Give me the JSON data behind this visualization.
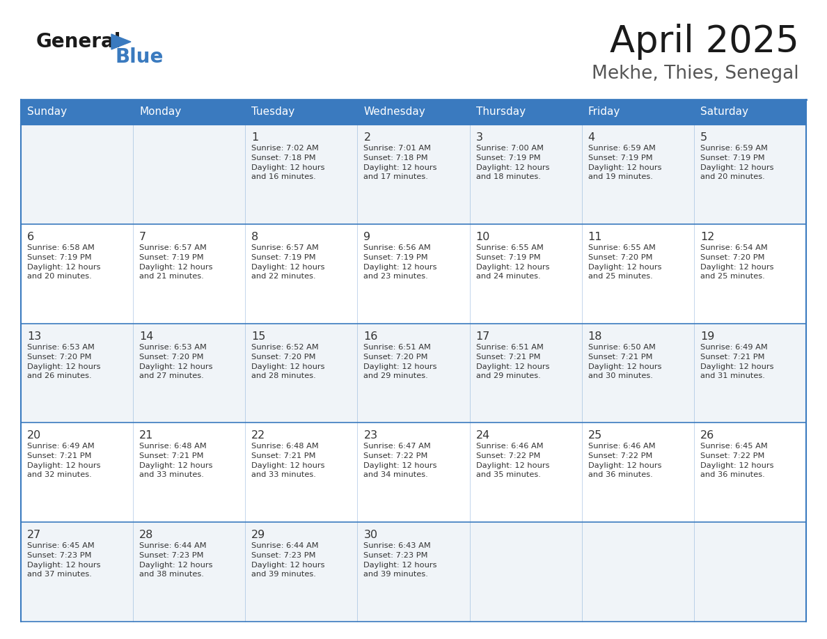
{
  "title": "April 2025",
  "subtitle": "Mekhe, Thies, Senegal",
  "days_of_week": [
    "Sunday",
    "Monday",
    "Tuesday",
    "Wednesday",
    "Thursday",
    "Friday",
    "Saturday"
  ],
  "header_bg": "#3a7abf",
  "header_text": "#ffffff",
  "cell_bg_odd": "#f0f4f8",
  "cell_bg_even": "#ffffff",
  "border_color": "#3a7abf",
  "text_color": "#333333",
  "logo_general_color": "#1a1a1a",
  "logo_blue_color": "#3a7abf",
  "calendar": [
    [
      {
        "day": "",
        "sunrise": "",
        "sunset": "",
        "daylight": ""
      },
      {
        "day": "",
        "sunrise": "",
        "sunset": "",
        "daylight": ""
      },
      {
        "day": "1",
        "sunrise": "Sunrise: 7:02 AM",
        "sunset": "Sunset: 7:18 PM",
        "daylight": "Daylight: 12 hours\nand 16 minutes."
      },
      {
        "day": "2",
        "sunrise": "Sunrise: 7:01 AM",
        "sunset": "Sunset: 7:18 PM",
        "daylight": "Daylight: 12 hours\nand 17 minutes."
      },
      {
        "day": "3",
        "sunrise": "Sunrise: 7:00 AM",
        "sunset": "Sunset: 7:19 PM",
        "daylight": "Daylight: 12 hours\nand 18 minutes."
      },
      {
        "day": "4",
        "sunrise": "Sunrise: 6:59 AM",
        "sunset": "Sunset: 7:19 PM",
        "daylight": "Daylight: 12 hours\nand 19 minutes."
      },
      {
        "day": "5",
        "sunrise": "Sunrise: 6:59 AM",
        "sunset": "Sunset: 7:19 PM",
        "daylight": "Daylight: 12 hours\nand 20 minutes."
      }
    ],
    [
      {
        "day": "6",
        "sunrise": "Sunrise: 6:58 AM",
        "sunset": "Sunset: 7:19 PM",
        "daylight": "Daylight: 12 hours\nand 20 minutes."
      },
      {
        "day": "7",
        "sunrise": "Sunrise: 6:57 AM",
        "sunset": "Sunset: 7:19 PM",
        "daylight": "Daylight: 12 hours\nand 21 minutes."
      },
      {
        "day": "8",
        "sunrise": "Sunrise: 6:57 AM",
        "sunset": "Sunset: 7:19 PM",
        "daylight": "Daylight: 12 hours\nand 22 minutes."
      },
      {
        "day": "9",
        "sunrise": "Sunrise: 6:56 AM",
        "sunset": "Sunset: 7:19 PM",
        "daylight": "Daylight: 12 hours\nand 23 minutes."
      },
      {
        "day": "10",
        "sunrise": "Sunrise: 6:55 AM",
        "sunset": "Sunset: 7:19 PM",
        "daylight": "Daylight: 12 hours\nand 24 minutes."
      },
      {
        "day": "11",
        "sunrise": "Sunrise: 6:55 AM",
        "sunset": "Sunset: 7:20 PM",
        "daylight": "Daylight: 12 hours\nand 25 minutes."
      },
      {
        "day": "12",
        "sunrise": "Sunrise: 6:54 AM",
        "sunset": "Sunset: 7:20 PM",
        "daylight": "Daylight: 12 hours\nand 25 minutes."
      }
    ],
    [
      {
        "day": "13",
        "sunrise": "Sunrise: 6:53 AM",
        "sunset": "Sunset: 7:20 PM",
        "daylight": "Daylight: 12 hours\nand 26 minutes."
      },
      {
        "day": "14",
        "sunrise": "Sunrise: 6:53 AM",
        "sunset": "Sunset: 7:20 PM",
        "daylight": "Daylight: 12 hours\nand 27 minutes."
      },
      {
        "day": "15",
        "sunrise": "Sunrise: 6:52 AM",
        "sunset": "Sunset: 7:20 PM",
        "daylight": "Daylight: 12 hours\nand 28 minutes."
      },
      {
        "day": "16",
        "sunrise": "Sunrise: 6:51 AM",
        "sunset": "Sunset: 7:20 PM",
        "daylight": "Daylight: 12 hours\nand 29 minutes."
      },
      {
        "day": "17",
        "sunrise": "Sunrise: 6:51 AM",
        "sunset": "Sunset: 7:21 PM",
        "daylight": "Daylight: 12 hours\nand 29 minutes."
      },
      {
        "day": "18",
        "sunrise": "Sunrise: 6:50 AM",
        "sunset": "Sunset: 7:21 PM",
        "daylight": "Daylight: 12 hours\nand 30 minutes."
      },
      {
        "day": "19",
        "sunrise": "Sunrise: 6:49 AM",
        "sunset": "Sunset: 7:21 PM",
        "daylight": "Daylight: 12 hours\nand 31 minutes."
      }
    ],
    [
      {
        "day": "20",
        "sunrise": "Sunrise: 6:49 AM",
        "sunset": "Sunset: 7:21 PM",
        "daylight": "Daylight: 12 hours\nand 32 minutes."
      },
      {
        "day": "21",
        "sunrise": "Sunrise: 6:48 AM",
        "sunset": "Sunset: 7:21 PM",
        "daylight": "Daylight: 12 hours\nand 33 minutes."
      },
      {
        "day": "22",
        "sunrise": "Sunrise: 6:48 AM",
        "sunset": "Sunset: 7:21 PM",
        "daylight": "Daylight: 12 hours\nand 33 minutes."
      },
      {
        "day": "23",
        "sunrise": "Sunrise: 6:47 AM",
        "sunset": "Sunset: 7:22 PM",
        "daylight": "Daylight: 12 hours\nand 34 minutes."
      },
      {
        "day": "24",
        "sunrise": "Sunrise: 6:46 AM",
        "sunset": "Sunset: 7:22 PM",
        "daylight": "Daylight: 12 hours\nand 35 minutes."
      },
      {
        "day": "25",
        "sunrise": "Sunrise: 6:46 AM",
        "sunset": "Sunset: 7:22 PM",
        "daylight": "Daylight: 12 hours\nand 36 minutes."
      },
      {
        "day": "26",
        "sunrise": "Sunrise: 6:45 AM",
        "sunset": "Sunset: 7:22 PM",
        "daylight": "Daylight: 12 hours\nand 36 minutes."
      }
    ],
    [
      {
        "day": "27",
        "sunrise": "Sunrise: 6:45 AM",
        "sunset": "Sunset: 7:23 PM",
        "daylight": "Daylight: 12 hours\nand 37 minutes."
      },
      {
        "day": "28",
        "sunrise": "Sunrise: 6:44 AM",
        "sunset": "Sunset: 7:23 PM",
        "daylight": "Daylight: 12 hours\nand 38 minutes."
      },
      {
        "day": "29",
        "sunrise": "Sunrise: 6:44 AM",
        "sunset": "Sunset: 7:23 PM",
        "daylight": "Daylight: 12 hours\nand 39 minutes."
      },
      {
        "day": "30",
        "sunrise": "Sunrise: 6:43 AM",
        "sunset": "Sunset: 7:23 PM",
        "daylight": "Daylight: 12 hours\nand 39 minutes."
      },
      {
        "day": "",
        "sunrise": "",
        "sunset": "",
        "daylight": ""
      },
      {
        "day": "",
        "sunrise": "",
        "sunset": "",
        "daylight": ""
      },
      {
        "day": "",
        "sunrise": "",
        "sunset": "",
        "daylight": ""
      }
    ]
  ]
}
